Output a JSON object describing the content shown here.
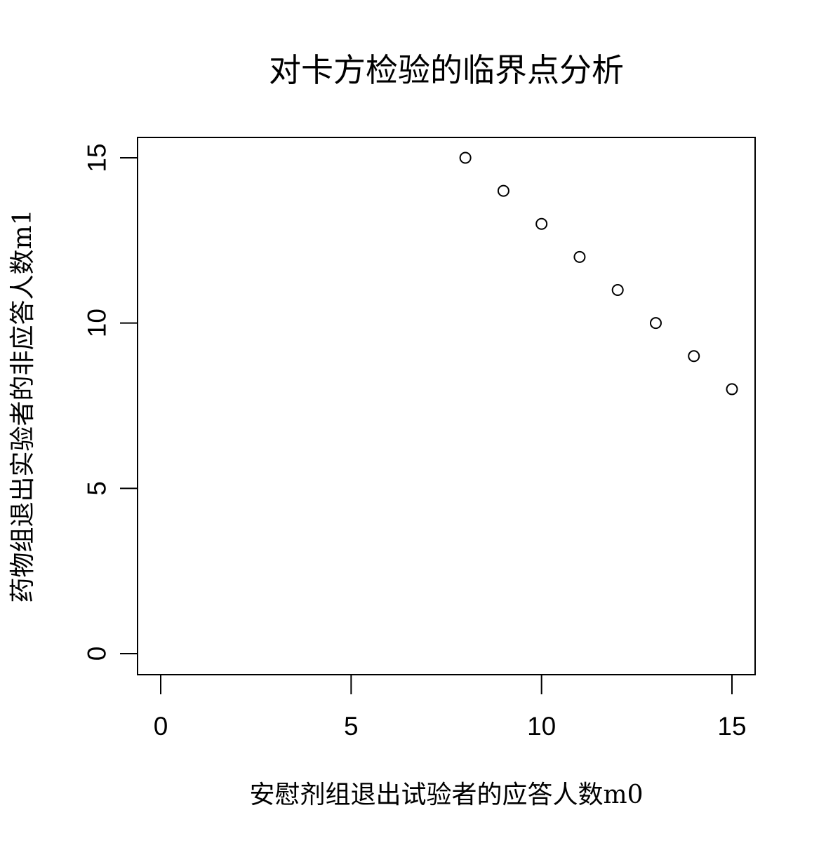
{
  "chart_data": {
    "type": "scatter",
    "title": "对卡方检验的临界点分析",
    "xlabel": "安慰剂组退出试验者的应答人数m0",
    "ylabel": "药物组退出实验者的非应答人数m1",
    "xlim": [
      0,
      15
    ],
    "ylim": [
      0,
      15
    ],
    "xticks": [
      0,
      5,
      10,
      15
    ],
    "yticks": [
      0,
      5,
      10,
      15
    ],
    "xtick_labels": [
      "0",
      "5",
      "10",
      "15"
    ],
    "ytick_labels": [
      "0",
      "5",
      "10",
      "15"
    ],
    "grid": false,
    "legend": "none",
    "marker": "open-circle",
    "points": [
      {
        "x": 8,
        "y": 15
      },
      {
        "x": 9,
        "y": 14
      },
      {
        "x": 10,
        "y": 13
      },
      {
        "x": 11,
        "y": 12
      },
      {
        "x": 12,
        "y": 11
      },
      {
        "x": 13,
        "y": 10
      },
      {
        "x": 14,
        "y": 9
      },
      {
        "x": 15,
        "y": 8
      }
    ],
    "colors": {
      "background": "#ffffff",
      "foreground": "#000000"
    }
  }
}
